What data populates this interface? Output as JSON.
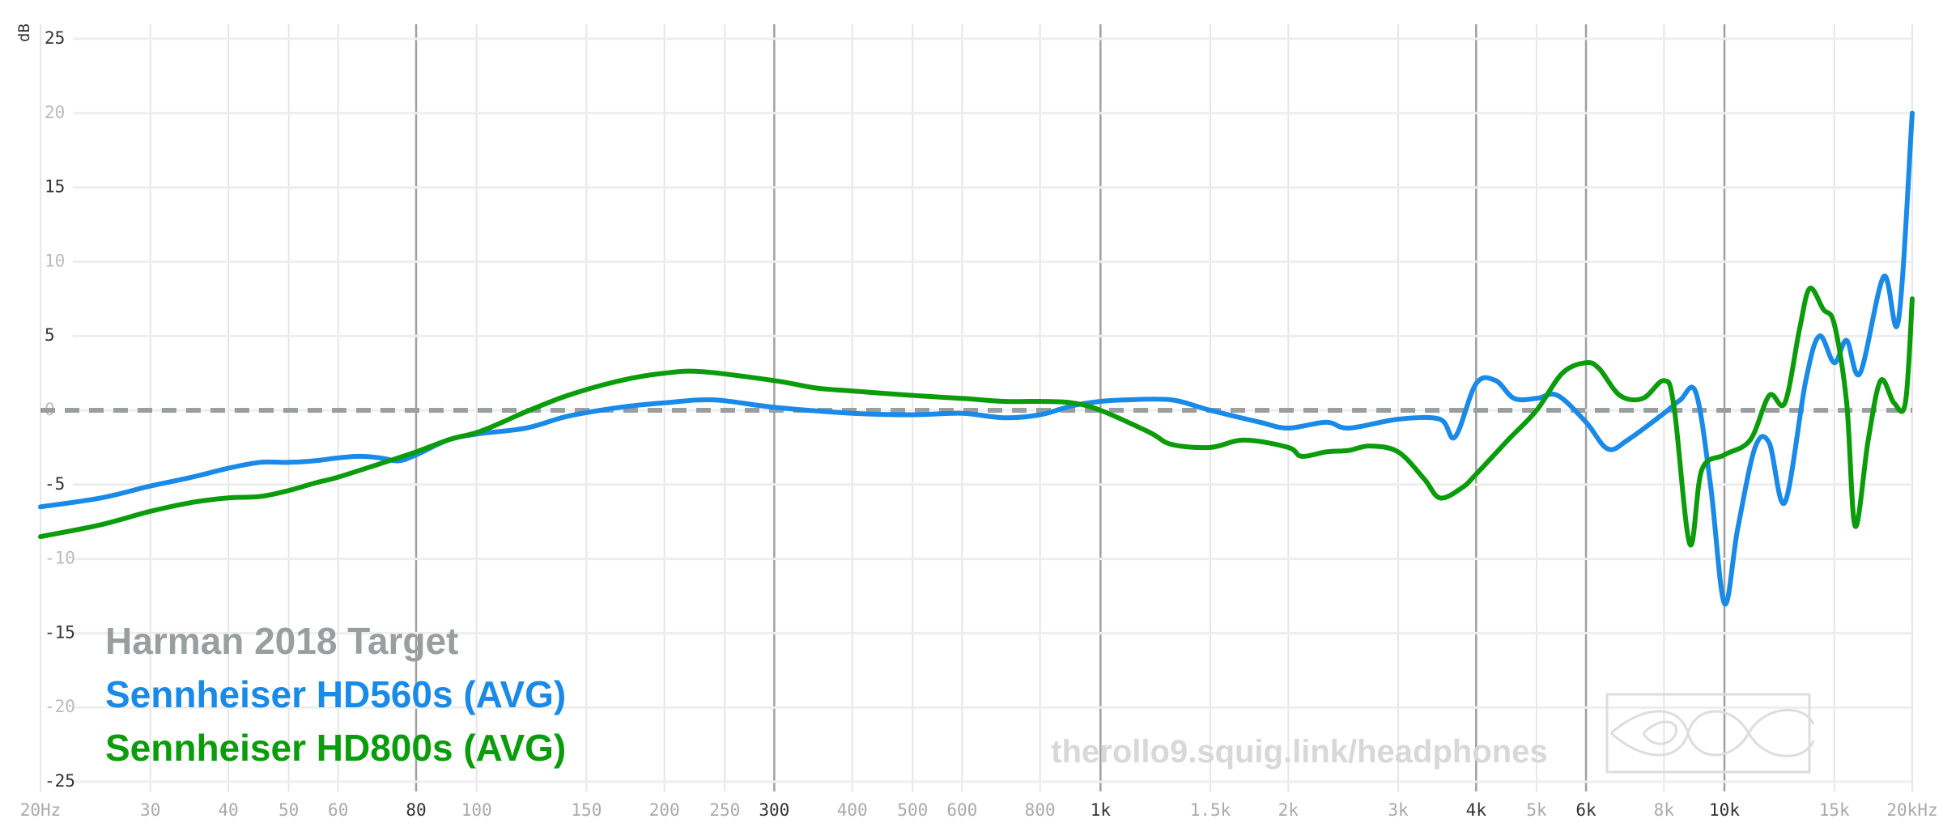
{
  "chart_data": {
    "type": "line",
    "title": "",
    "xlabel": "",
    "ylabel": "dB",
    "x_scale": "log",
    "xlim": [
      20,
      20000
    ],
    "ylim": [
      -25,
      25
    ],
    "grid": true,
    "legend_position": "bottom-left",
    "yticks": [
      {
        "value": 25,
        "label": "25"
      },
      {
        "value": 20,
        "label": "20"
      },
      {
        "value": 15,
        "label": "15"
      },
      {
        "value": 10,
        "label": "10"
      },
      {
        "value": 5,
        "label": "5"
      },
      {
        "value": 0,
        "label": "0"
      },
      {
        "value": -5,
        "label": "-5"
      },
      {
        "value": -10,
        "label": "-10"
      },
      {
        "value": -15,
        "label": "-15"
      },
      {
        "value": -20,
        "label": "-20"
      },
      {
        "value": -25,
        "label": "-25"
      }
    ],
    "xticks": [
      {
        "value": 20,
        "label": "20Hz",
        "major": false
      },
      {
        "value": 30,
        "label": "30",
        "major": false
      },
      {
        "value": 40,
        "label": "40",
        "major": false
      },
      {
        "value": 50,
        "label": "50",
        "major": false
      },
      {
        "value": 60,
        "label": "60",
        "major": false
      },
      {
        "value": 80,
        "label": "80",
        "major": true
      },
      {
        "value": 100,
        "label": "100",
        "major": false
      },
      {
        "value": 150,
        "label": "150",
        "major": false
      },
      {
        "value": 200,
        "label": "200",
        "major": false
      },
      {
        "value": 250,
        "label": "250",
        "major": false
      },
      {
        "value": 300,
        "label": "300",
        "major": true
      },
      {
        "value": 400,
        "label": "400",
        "major": false
      },
      {
        "value": 500,
        "label": "500",
        "major": false
      },
      {
        "value": 600,
        "label": "600",
        "major": false
      },
      {
        "value": 800,
        "label": "800",
        "major": false
      },
      {
        "value": 1000,
        "label": "1k",
        "major": true
      },
      {
        "value": 1500,
        "label": "1.5k",
        "major": false
      },
      {
        "value": 2000,
        "label": "2k",
        "major": false
      },
      {
        "value": 3000,
        "label": "3k",
        "major": false
      },
      {
        "value": 4000,
        "label": "4k",
        "major": true
      },
      {
        "value": 5000,
        "label": "5k",
        "major": false
      },
      {
        "value": 6000,
        "label": "6k",
        "major": true
      },
      {
        "value": 8000,
        "label": "8k",
        "major": false
      },
      {
        "value": 10000,
        "label": "10k",
        "major": true
      },
      {
        "value": 15000,
        "label": "15k",
        "major": false
      },
      {
        "value": 20000,
        "label": "20kHz",
        "major": false
      }
    ],
    "series": [
      {
        "name": "Harman 2018 Target",
        "color": "#999f9f",
        "dashed": true,
        "points": [
          [
            20,
            0
          ],
          [
            20000,
            0
          ]
        ]
      },
      {
        "name": "Sennheiser HD560s (AVG)",
        "color": "#1a8ae8",
        "points": [
          [
            20,
            -6.5
          ],
          [
            25,
            -5.9
          ],
          [
            30,
            -5.1
          ],
          [
            35,
            -4.5
          ],
          [
            40,
            -3.9
          ],
          [
            45,
            -3.5
          ],
          [
            50,
            -3.5
          ],
          [
            55,
            -3.4
          ],
          [
            60,
            -3.2
          ],
          [
            65,
            -3.1
          ],
          [
            70,
            -3.2
          ],
          [
            75,
            -3.4
          ],
          [
            80,
            -3.0
          ],
          [
            90,
            -2.0
          ],
          [
            100,
            -1.6
          ],
          [
            120,
            -1.2
          ],
          [
            140,
            -0.4
          ],
          [
            170,
            0.2
          ],
          [
            200,
            0.5
          ],
          [
            240,
            0.7
          ],
          [
            300,
            0.2
          ],
          [
            400,
            -0.2
          ],
          [
            500,
            -0.3
          ],
          [
            600,
            -0.2
          ],
          [
            700,
            -0.5
          ],
          [
            800,
            -0.3
          ],
          [
            900,
            0.3
          ],
          [
            1000,
            0.6
          ],
          [
            1100,
            0.7
          ],
          [
            1300,
            0.7
          ],
          [
            1500,
            0.0
          ],
          [
            1800,
            -0.8
          ],
          [
            2000,
            -1.2
          ],
          [
            2300,
            -0.8
          ],
          [
            2500,
            -1.2
          ],
          [
            3000,
            -0.6
          ],
          [
            3500,
            -0.6
          ],
          [
            3700,
            -1.8
          ],
          [
            4000,
            1.8
          ],
          [
            4300,
            2.0
          ],
          [
            4600,
            0.8
          ],
          [
            5000,
            0.8
          ],
          [
            5400,
            1.0
          ],
          [
            6000,
            -0.8
          ],
          [
            6500,
            -2.6
          ],
          [
            7000,
            -2.0
          ],
          [
            8000,
            -0.2
          ],
          [
            8500,
            0.7
          ],
          [
            9000,
            1.2
          ],
          [
            9500,
            -5.0
          ],
          [
            10000,
            -13.0
          ],
          [
            10500,
            -8.0
          ],
          [
            11200,
            -2.5
          ],
          [
            11800,
            -2.2
          ],
          [
            12500,
            -6.2
          ],
          [
            13500,
            2.0
          ],
          [
            14200,
            5.0
          ],
          [
            15000,
            3.2
          ],
          [
            15700,
            4.7
          ],
          [
            16500,
            2.5
          ],
          [
            18000,
            9.0
          ],
          [
            19000,
            6.0
          ],
          [
            20000,
            20.0
          ]
        ]
      },
      {
        "name": "Sennheiser HD800s (AVG)",
        "color": "#0b9c0b",
        "points": [
          [
            20,
            -8.5
          ],
          [
            25,
            -7.7
          ],
          [
            30,
            -6.8
          ],
          [
            35,
            -6.2
          ],
          [
            40,
            -5.9
          ],
          [
            45,
            -5.8
          ],
          [
            50,
            -5.4
          ],
          [
            55,
            -4.9
          ],
          [
            60,
            -4.5
          ],
          [
            70,
            -3.6
          ],
          [
            80,
            -2.8
          ],
          [
            90,
            -2.0
          ],
          [
            100,
            -1.5
          ],
          [
            110,
            -0.8
          ],
          [
            120,
            -0.1
          ],
          [
            140,
            1.0
          ],
          [
            170,
            2.0
          ],
          [
            200,
            2.5
          ],
          [
            230,
            2.6
          ],
          [
            300,
            2.0
          ],
          [
            350,
            1.5
          ],
          [
            400,
            1.3
          ],
          [
            500,
            1.0
          ],
          [
            600,
            0.8
          ],
          [
            700,
            0.6
          ],
          [
            800,
            0.6
          ],
          [
            900,
            0.5
          ],
          [
            1000,
            0.0
          ],
          [
            1200,
            -1.5
          ],
          [
            1300,
            -2.3
          ],
          [
            1500,
            -2.5
          ],
          [
            1700,
            -2.0
          ],
          [
            2000,
            -2.5
          ],
          [
            2100,
            -3.1
          ],
          [
            2300,
            -2.8
          ],
          [
            2500,
            -2.7
          ],
          [
            2700,
            -2.4
          ],
          [
            3000,
            -2.8
          ],
          [
            3300,
            -4.6
          ],
          [
            3500,
            -5.9
          ],
          [
            3800,
            -5.2
          ],
          [
            4000,
            -4.3
          ],
          [
            4500,
            -2.0
          ],
          [
            5000,
            0.0
          ],
          [
            5500,
            2.5
          ],
          [
            6000,
            3.2
          ],
          [
            6300,
            2.8
          ],
          [
            6800,
            1.0
          ],
          [
            7400,
            0.8
          ],
          [
            8000,
            2.0
          ],
          [
            8300,
            0.3
          ],
          [
            8800,
            -9.0
          ],
          [
            9200,
            -4.0
          ],
          [
            10000,
            -3.0
          ],
          [
            11000,
            -2.0
          ],
          [
            11800,
            1.0
          ],
          [
            12500,
            0.5
          ],
          [
            13200,
            5.5
          ],
          [
            13700,
            8.2
          ],
          [
            14400,
            6.8
          ],
          [
            15000,
            5.8
          ],
          [
            15700,
            0.5
          ],
          [
            16200,
            -7.8
          ],
          [
            17000,
            -2.0
          ],
          [
            17800,
            2.0
          ],
          [
            18700,
            0.5
          ],
          [
            19500,
            0.5
          ],
          [
            20000,
            7.5
          ]
        ]
      }
    ],
    "watermark": "therollo9.squig.link/headphones"
  }
}
